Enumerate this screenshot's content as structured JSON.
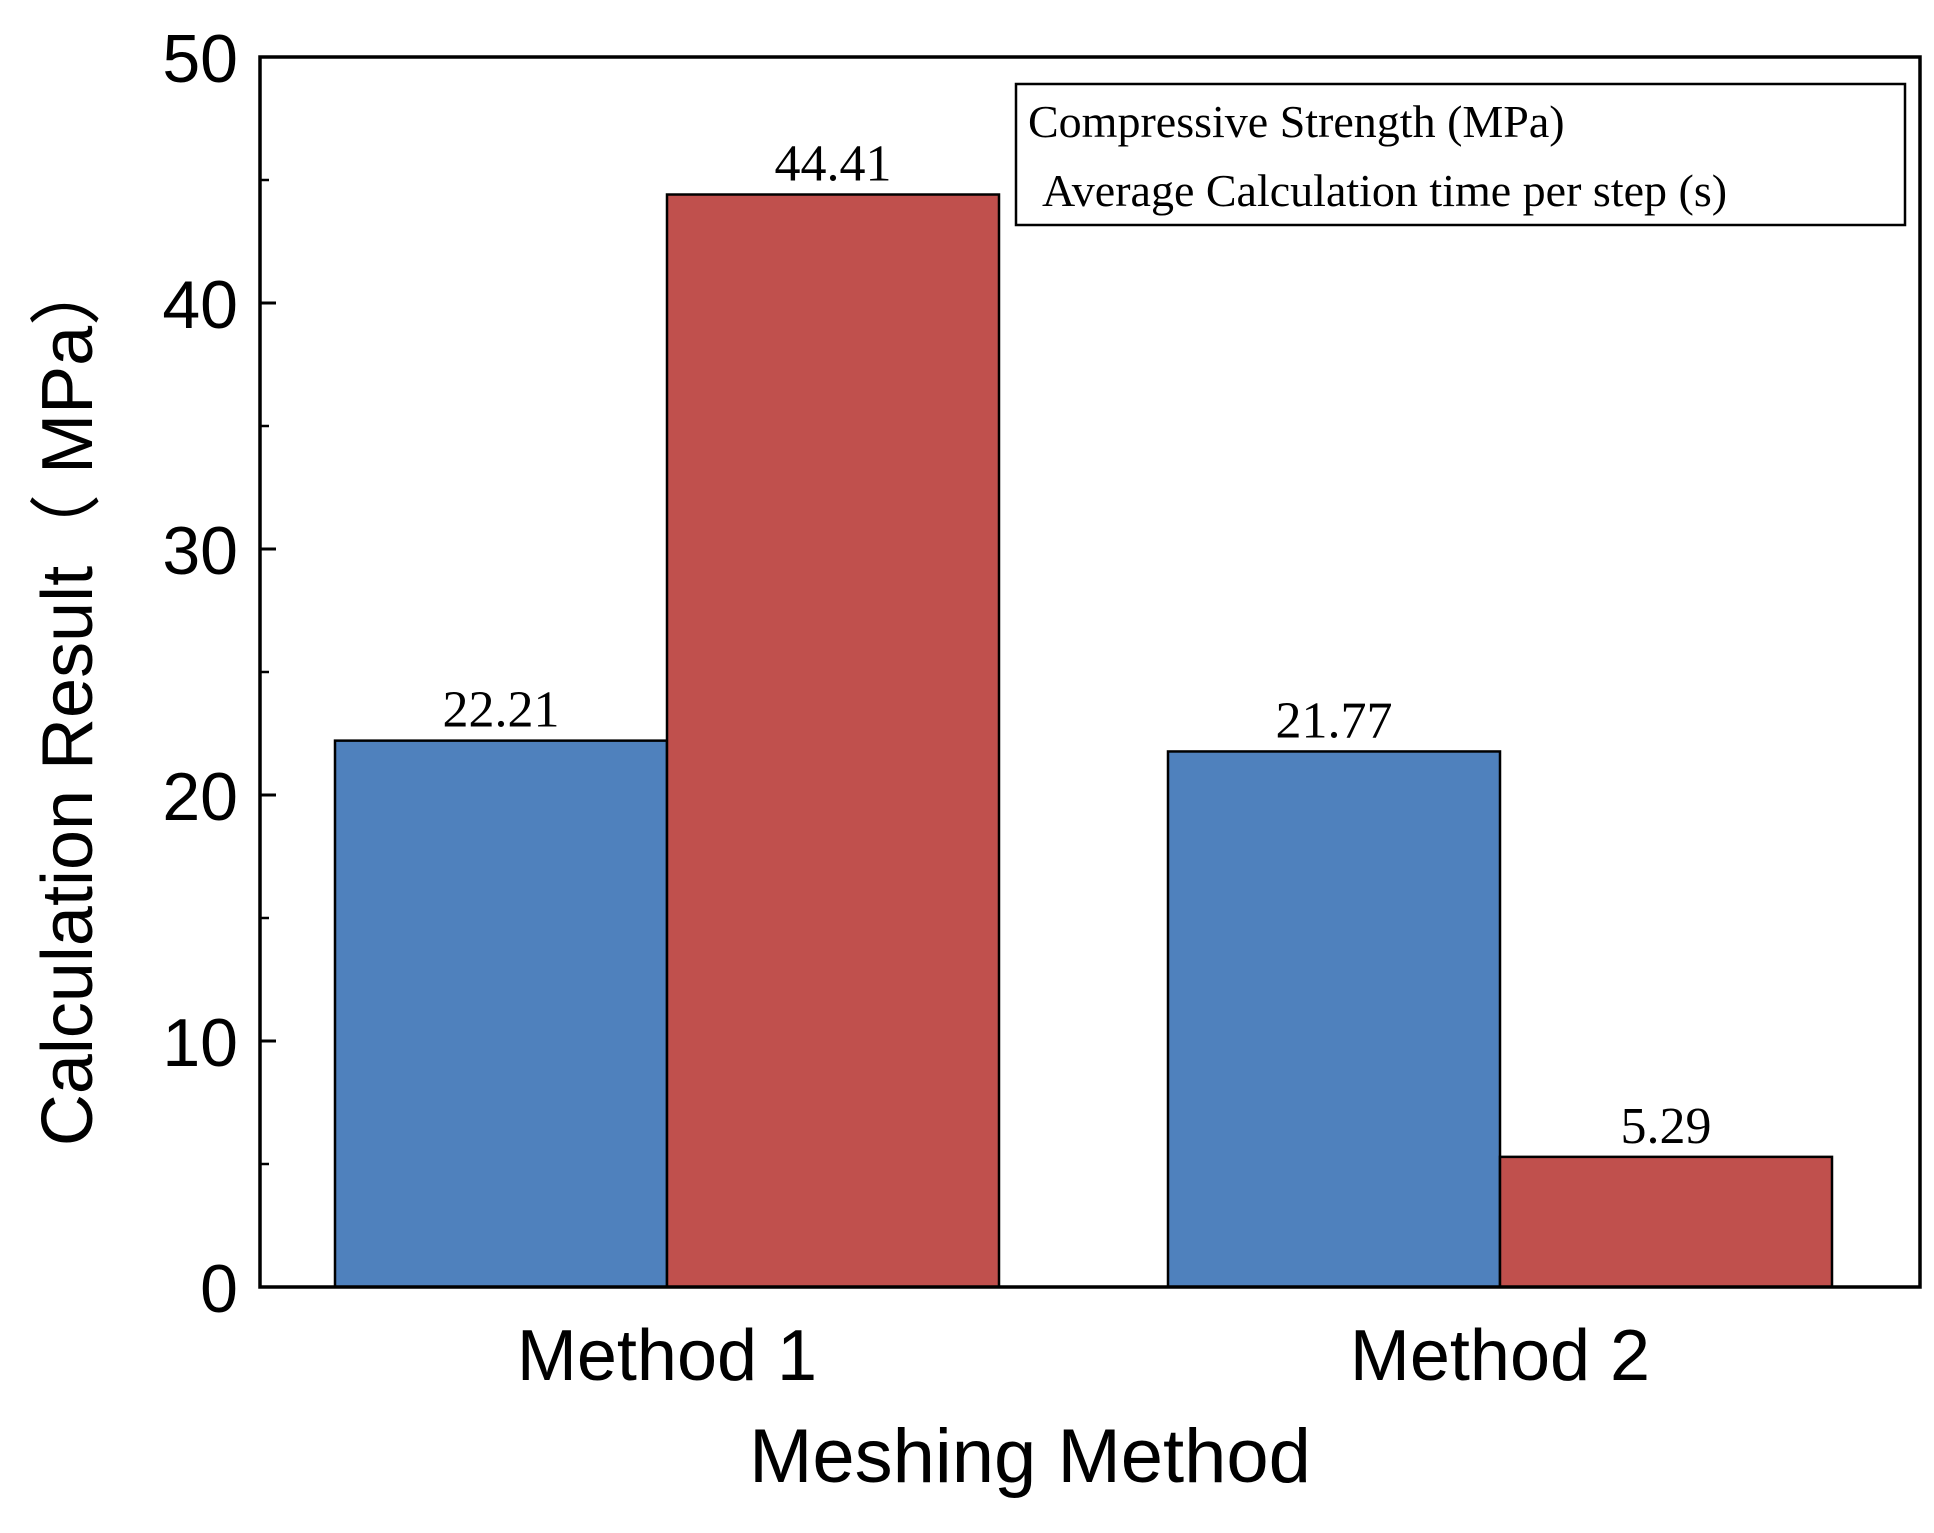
{
  "chart_data": {
    "type": "bar",
    "title": "",
    "xlabel": "Meshing Method",
    "ylabel": "Calculation Result（ MPa）",
    "categories": [
      "Method 1",
      "Method 2"
    ],
    "series": [
      {
        "name": "Compressive Strength (MPa)",
        "values": [
          22.21,
          21.77
        ],
        "labels": [
          "22.21",
          "21.77"
        ],
        "color": "#4f81bd"
      },
      {
        "name": "Average Calculation time per step (s)",
        "values": [
          44.41,
          5.29
        ],
        "labels": [
          "44.41",
          "5.29"
        ],
        "color": "#c0504d"
      }
    ],
    "ylim": [
      0,
      50
    ],
    "yticks": [
      0,
      10,
      20,
      30,
      40,
      50
    ],
    "ytick_labels": [
      "0",
      "10",
      "20",
      "30",
      "40",
      "50"
    ],
    "grid": false,
    "legend_position": "top-right"
  }
}
